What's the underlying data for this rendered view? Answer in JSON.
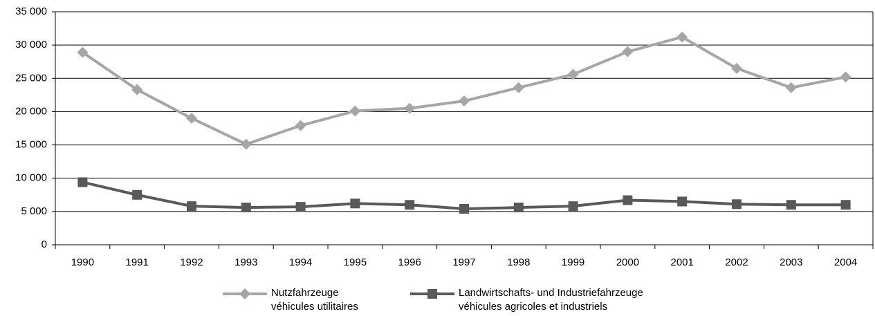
{
  "chart_data": {
    "type": "line",
    "categories": [
      "1990",
      "1991",
      "1992",
      "1993",
      "1994",
      "1995",
      "1996",
      "1997",
      "1998",
      "1999",
      "2000",
      "2001",
      "2002",
      "2003",
      "2004"
    ],
    "series": [
      {
        "name": "Nutzfahrzeuge\nvéhicules utilitaires",
        "color": "#a6a6a6",
        "marker": "diamond",
        "values": [
          28900,
          23300,
          19000,
          15100,
          17900,
          20100,
          20500,
          21600,
          23600,
          25600,
          29000,
          31200,
          26500,
          23600,
          25200
        ]
      },
      {
        "name": "Landwirtschafts- und Industriefahrzeuge\nvéhicules agricoles et industriels",
        "color": "#595959",
        "marker": "square",
        "values": [
          9400,
          7500,
          5800,
          5600,
          5700,
          6200,
          6000,
          5400,
          5600,
          5800,
          6700,
          6500,
          6100,
          6000,
          6000
        ]
      }
    ],
    "ylim": [
      0,
      35000
    ],
    "yticks": [
      0,
      {
        "value": 5000,
        "label": "5 000"
      },
      {
        "value": 10000,
        "label": "10 000"
      },
      {
        "value": 15000,
        "label": "15 000"
      },
      {
        "value": 20000,
        "label": "20 000"
      },
      {
        "value": 25000,
        "label": "25 000"
      },
      {
        "value": 30000,
        "label": "30 000"
      },
      {
        "value": 35000,
        "label": "35 000"
      }
    ],
    "grid": true,
    "legend": "bottom"
  }
}
